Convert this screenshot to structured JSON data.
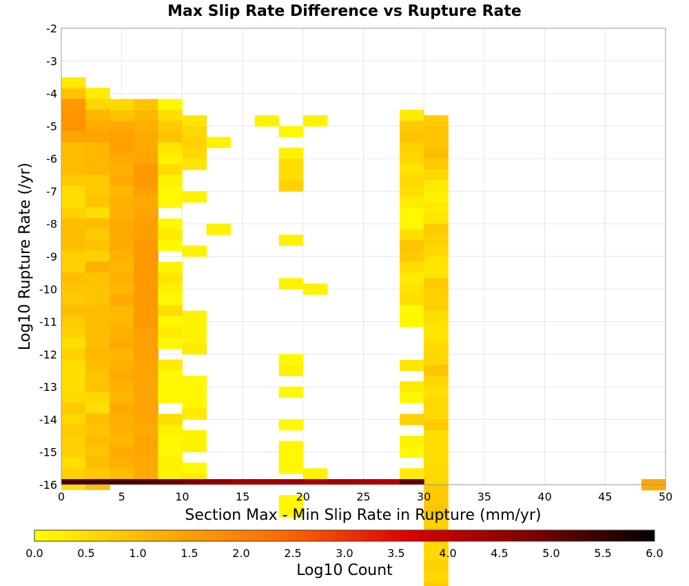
{
  "chart_data": {
    "type": "heatmap",
    "title": "Max Slip Rate Difference vs Rupture Rate",
    "xlabel": "Section Max - Min Slip Rate in Rupture (mm/yr)",
    "ylabel": "Log10 Rupture Rate (/yr)",
    "xlim": [
      0,
      50
    ],
    "ylim": [
      -16,
      -2
    ],
    "x_ticks": [
      "0",
      "5",
      "10",
      "15",
      "20",
      "25",
      "30",
      "35",
      "40",
      "45",
      "50"
    ],
    "y_ticks": [
      "-2",
      "-3",
      "-4",
      "-5",
      "-6",
      "-7",
      "-8",
      "-9",
      "-10",
      "-11",
      "-12",
      "-13",
      "-14",
      "-15",
      "-16"
    ],
    "grid": true,
    "bin_width_x": 2,
    "bin_height_y": 0.333,
    "colorbar": {
      "label": "Log10 Count",
      "range": [
        0,
        6
      ],
      "ticks": [
        "0.0",
        "0.5",
        "1.0",
        "1.5",
        "2.0",
        "2.5",
        "3.0",
        "3.5",
        "4.0",
        "4.5",
        "5.0",
        "5.5",
        "6.0"
      ],
      "colors": [
        "#ffff00",
        "#ffb000",
        "#ff6a00",
        "#e00000",
        "#800000",
        "#000000"
      ]
    },
    "columns": [
      {
        "x": 1,
        "y_top": -3.5,
        "values": [
          0.3,
          0.9,
          1.6,
          1.7,
          1.7,
          1.4,
          1.0,
          1.0,
          1.0,
          0.8,
          0.5,
          0.5,
          0.7,
          1.0,
          1.0,
          1.0,
          0.7,
          0.7,
          1.0,
          0.9,
          0.8,
          1.0,
          0.8,
          0.7,
          0.5,
          0.7,
          0.5,
          0.5,
          0.5,
          0.6,
          0.8,
          0.6,
          0.8,
          0.7,
          0.7,
          0.5,
          0.7,
          0.5
        ]
      },
      {
        "x": 3,
        "y_top": -3.83,
        "values": [
          0.3,
          0.6,
          1.1,
          1.3,
          1.4,
          1.1,
          1.1,
          1.1,
          0.8,
          0.8,
          0.9,
          0.5,
          1.0,
          0.8,
          0.9,
          0.7,
          1.2,
          0.9,
          0.9,
          0.9,
          1.0,
          1.0,
          1.0,
          1.0,
          1.1,
          1.0,
          0.9,
          0.9,
          0.6,
          0.5,
          1.0,
          0.9,
          1.0,
          0.9,
          1.0,
          0.8,
          1.0
        ]
      },
      {
        "x": 5,
        "y_top": -4.17,
        "values": [
          0.6,
          0.9,
          1.3,
          1.5,
          1.5,
          1.3,
          1.2,
          1.3,
          1.1,
          1.2,
          1.2,
          1.3,
          1.3,
          1.3,
          1.2,
          1.1,
          1.2,
          1.1,
          1.3,
          1.1,
          1.1,
          1.2,
          1.3,
          1.1,
          1.2,
          1.3,
          1.2,
          1.1,
          1.3,
          1.2,
          1.2,
          1.1,
          1.3,
          1.2,
          1.0
        ]
      },
      {
        "x": 7,
        "y_top": -4.17,
        "values": [
          0.9,
          1.1,
          1.2,
          1.3,
          1.3,
          1.4,
          1.6,
          1.6,
          1.5,
          1.3,
          1.4,
          1.5,
          1.5,
          1.6,
          1.6,
          1.6,
          1.6,
          1.6,
          1.6,
          1.6,
          1.6,
          1.5,
          1.5,
          1.5,
          1.4,
          1.4,
          1.4,
          1.4,
          1.4,
          1.4,
          1.3,
          1.4,
          1.4,
          1.3,
          1.3
        ]
      },
      {
        "x": 9,
        "y_top": -4.17,
        "values": [
          0.1,
          0.5,
          0.8,
          0.9,
          0.4,
          0.2,
          0.5,
          0.2,
          0.1,
          0.1,
          null,
          0.1,
          0.3,
          0.1,
          null,
          0.2,
          0.4,
          0.2,
          0.1,
          0.5,
          0.1,
          0.3,
          0.1,
          null,
          0.3,
          0.1,
          0.1,
          0.1,
          null,
          0.5,
          0.2,
          0.1,
          0.1,
          0.2,
          0.2
        ]
      },
      {
        "x": 11,
        "y_top": -4.67,
        "values": [
          0.4,
          0.6,
          0.7,
          0.6,
          0.4,
          null,
          null,
          0.2,
          null,
          null,
          null,
          null,
          0.2,
          null,
          null,
          null,
          null,
          null,
          0.2,
          0.2,
          0.2,
          0.3,
          null,
          null,
          0.1,
          0.1,
          0.1,
          0.3,
          null,
          0.2,
          0.2,
          null,
          0.1,
          0.3
        ]
      },
      {
        "x": 13,
        "y_top": -5.33,
        "values": [
          0.2,
          null,
          null,
          null,
          null,
          null,
          null,
          null,
          0.2
        ]
      },
      {
        "x": 17,
        "y_top": -4.67,
        "values": [
          0.2
        ]
      },
      {
        "x": 19,
        "y_top": -5.0,
        "values": [
          0.1,
          null,
          0.2,
          0.5,
          0.5,
          0.7,
          null,
          null,
          null,
          null,
          0.2,
          null,
          null,
          null,
          0.2,
          null,
          null,
          null,
          null,
          null,
          null,
          0.1,
          0.2,
          null,
          0.1,
          null,
          null,
          0.1,
          null,
          0.1,
          0.1,
          0.1,
          null,
          null,
          0.1,
          0.1
        ]
      },
      {
        "x": 21,
        "y_top": -4.67,
        "values": [
          0.2
        ]
      },
      {
        "x": 21,
        "y_top": -9.83,
        "values": [
          0.2
        ]
      },
      {
        "x": 21,
        "y_top": -15.5,
        "values": [
          0.2
        ]
      },
      {
        "x": 29,
        "y_top": -4.5,
        "values": [
          0.3,
          0.8,
          0.9,
          0.7,
          0.6,
          0.4,
          0.6,
          0.5,
          0.3,
          0.1,
          0.1,
          0.5,
          0.9,
          0.8,
          0.5,
          0.3,
          0.4,
          0.5,
          0.1,
          0.1
        ]
      },
      {
        "x": 29,
        "y_top": -12.17,
        "values": [
          0.4
        ]
      },
      {
        "x": 29,
        "y_top": -12.83,
        "values": [
          0.3,
          0.1
        ]
      },
      {
        "x": 29,
        "y_top": -13.83,
        "values": [
          0.7
        ]
      },
      {
        "x": 29,
        "y_top": -14.5,
        "values": [
          0.2,
          0.1,
          null,
          0.3
        ]
      },
      {
        "x": 31,
        "y_top": -4.67,
        "values": [
          0.8,
          0.9,
          0.9,
          1.0,
          0.8,
          0.6,
          0.3,
          0.2,
          0.3,
          0.4,
          0.8,
          0.7,
          0.6,
          0.4,
          0.4,
          0.8,
          0.7,
          0.7,
          0.5,
          0.4,
          0.4,
          0.6,
          0.6,
          0.9,
          0.6,
          0.5,
          0.6,
          0.6,
          0.8,
          0.5,
          0.5,
          0.5,
          0.6,
          0.6,
          0.8,
          0.8,
          0.9,
          0.7,
          0.8,
          0.6,
          0.6,
          0.7,
          0.6,
          0.8
        ]
      },
      {
        "x": 49,
        "y_top": -15.83,
        "values": [
          1.3
        ]
      }
    ],
    "bottom_row": {
      "y": -16,
      "height": 0.17,
      "values": [
        5.3,
        5.3,
        5.3,
        5.2,
        5.0,
        4.8,
        4.6,
        4.4,
        4.4,
        4.4,
        4.3,
        4.4,
        4.3,
        4.2,
        5.1
      ]
    }
  }
}
